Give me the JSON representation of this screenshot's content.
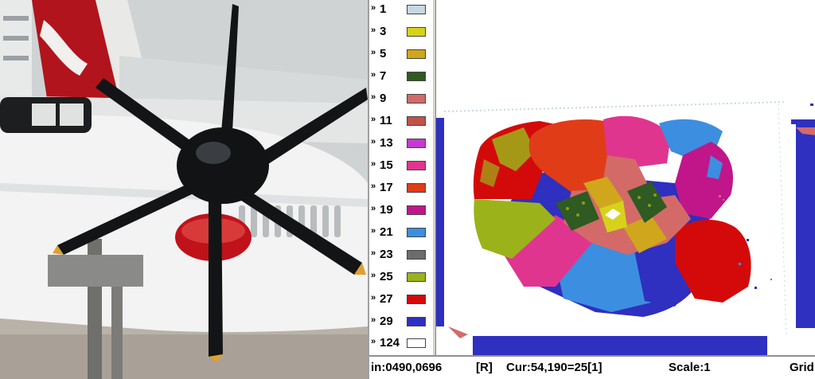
{
  "legend": {
    "items": [
      {
        "mark": "»",
        "label": "1",
        "color": "#c7d8e0"
      },
      {
        "mark": "»",
        "label": "3",
        "color": "#d6d21a"
      },
      {
        "mark": "»",
        "label": "5",
        "color": "#d0a61c"
      },
      {
        "mark": "»",
        "label": "7",
        "color": "#2f5a22"
      },
      {
        "mark": "»",
        "label": "9",
        "color": "#d36a68"
      },
      {
        "mark": "»",
        "label": "11",
        "color": "#c4504a"
      },
      {
        "mark": "»",
        "label": "13",
        "color": "#c43bd0"
      },
      {
        "mark": "»",
        "label": "15",
        "color": "#e0358f"
      },
      {
        "mark": "»",
        "label": "17",
        "color": "#e03c18"
      },
      {
        "mark": "»",
        "label": "19",
        "color": "#c0168a"
      },
      {
        "mark": "»",
        "label": "21",
        "color": "#3c8ee0"
      },
      {
        "mark": "»",
        "label": "23",
        "color": "#6c6c6c"
      },
      {
        "mark": "»",
        "label": "25",
        "color": "#9cb21a"
      },
      {
        "mark": "»",
        "label": "27",
        "color": "#d40a0a"
      },
      {
        "mark": "»",
        "label": "29",
        "color": "#2f2fc0"
      },
      {
        "mark": "»",
        "label": "124",
        "color": "#ffffff"
      }
    ]
  },
  "status_bar": {
    "pos": "in:0490,0696",
    "mode": "[R]",
    "cursor": "Cur:54,190=25[1]",
    "scale": "Scale:1",
    "grid": "Grid"
  },
  "colors": {
    "propeller_blade": "#121416",
    "spinner": "#111315",
    "nacelle": "#f2f3f2",
    "intake": "#c0121a",
    "tail": "#b1141c",
    "sky": "#cfd3d4",
    "tarmac": "#b9b2a8",
    "frame_blue": "#2f2fc0"
  }
}
